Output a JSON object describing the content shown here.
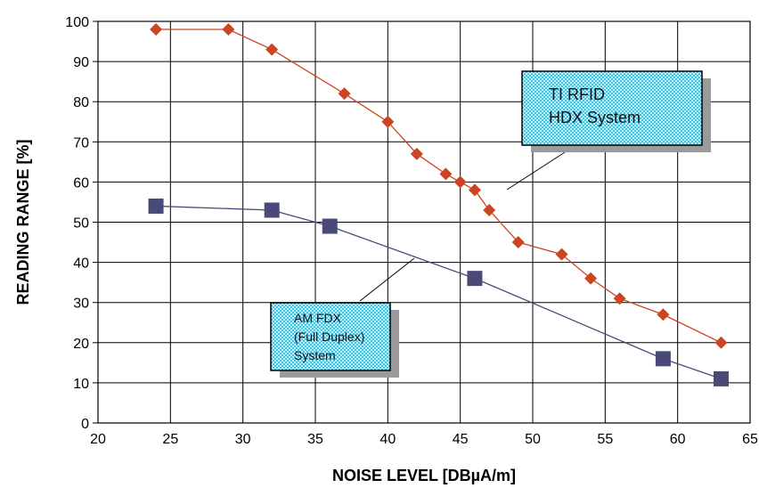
{
  "chart_data": {
    "type": "line",
    "xlabel": "NOISE LEVEL [DBµA/m]",
    "ylabel": "READING RANGE [%]",
    "xlim": [
      20,
      65
    ],
    "ylim": [
      0,
      100
    ],
    "xticks": [
      20,
      25,
      30,
      35,
      40,
      45,
      50,
      55,
      60,
      65
    ],
    "yticks": [
      0,
      10,
      20,
      30,
      40,
      50,
      60,
      70,
      80,
      90,
      100
    ],
    "grid": "vertical and horizontal",
    "series": [
      {
        "name": "TI RFID HDX System",
        "color": "#cc4422",
        "marker": "diamond",
        "x": [
          24,
          29,
          32,
          37,
          40,
          42,
          44,
          45,
          46,
          47,
          49,
          52,
          54,
          56,
          59,
          63
        ],
        "y": [
          98,
          98,
          93,
          82,
          75,
          67,
          62,
          60,
          58,
          53,
          45,
          42,
          36,
          31,
          27,
          20
        ]
      },
      {
        "name": "AM FDX (Full Duplex) System",
        "color": "#4a4a78",
        "marker": "square",
        "x": [
          24,
          32,
          36,
          46,
          59,
          63
        ],
        "y": [
          54,
          53,
          49,
          36,
          16,
          11
        ]
      }
    ],
    "annotations": [
      {
        "lines": [
          "TI RFID",
          "HDX System"
        ]
      },
      {
        "lines": [
          "AM FDX",
          "(Full Duplex)",
          "System"
        ]
      }
    ]
  }
}
